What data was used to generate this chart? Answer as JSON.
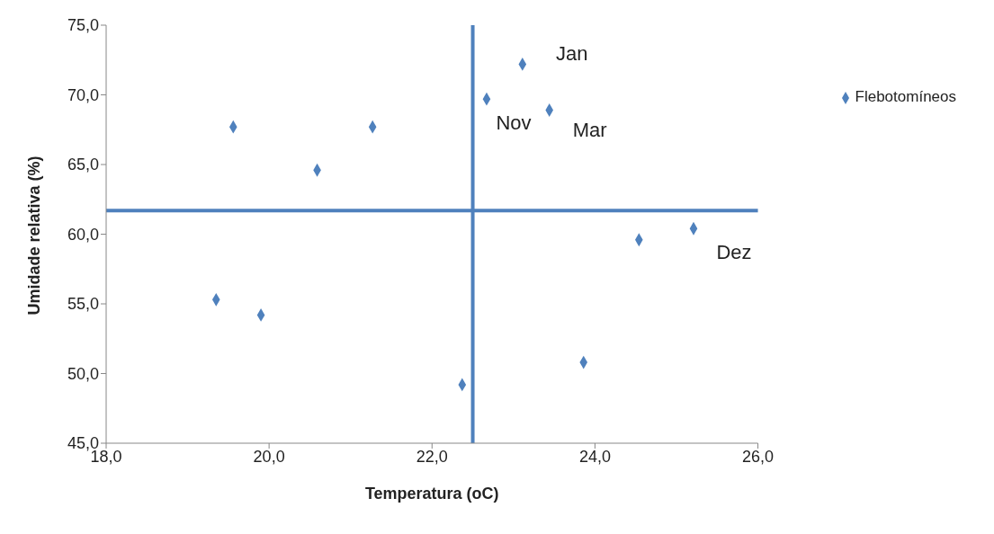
{
  "chart_data": {
    "type": "scatter",
    "xlabel": "Temperatura (oC)",
    "ylabel": "Umidade relativa  (%)",
    "xlim": [
      18,
      26
    ],
    "xticks": [
      {
        "value": 18,
        "label": "18,0"
      },
      {
        "value": 20,
        "label": "20,0"
      },
      {
        "value": 22,
        "label": "22,0"
      },
      {
        "value": 24,
        "label": "24,0"
      },
      {
        "value": 26,
        "label": "26,0"
      }
    ],
    "ylim": [
      45,
      75
    ],
    "yticks": [
      {
        "value": 45,
        "label": "45,0"
      },
      {
        "value": 50,
        "label": "50,0"
      },
      {
        "value": 55,
        "label": "55,0"
      },
      {
        "value": 60,
        "label": "60,0"
      },
      {
        "value": 65,
        "label": "65,0"
      },
      {
        "value": 70,
        "label": "70,0"
      },
      {
        "value": 75,
        "label": "75,0"
      }
    ],
    "series": [
      {
        "name": "Flebotomíneos",
        "color": "#4f81bd",
        "x": [
          19.56,
          21.27,
          20.59,
          19.35,
          19.9,
          22.37,
          22.67,
          23.11,
          23.44,
          23.86,
          24.54,
          25.21
        ],
        "values": [
          67.7,
          67.7,
          64.6,
          55.3,
          54.2,
          49.2,
          69.7,
          72.2,
          68.9,
          50.8,
          59.6,
          60.4
        ]
      }
    ],
    "ref_lines": [
      {
        "axis": "x",
        "value": 22.5,
        "color": "#4f81bd"
      },
      {
        "axis": "y",
        "value": 61.7,
        "color": "#4f81bd"
      }
    ],
    "annotations": [
      {
        "text": "Jan",
        "x": 23.11,
        "y": 72.2
      },
      {
        "text": "Nov",
        "x": 22.67,
        "y": 69.7
      },
      {
        "text": "Mar",
        "x": 23.44,
        "y": 68.9
      },
      {
        "text": "Dez",
        "x": 25.21,
        "y": 60.4
      }
    ],
    "marker": "diamond",
    "legend": "right",
    "grid": false
  }
}
